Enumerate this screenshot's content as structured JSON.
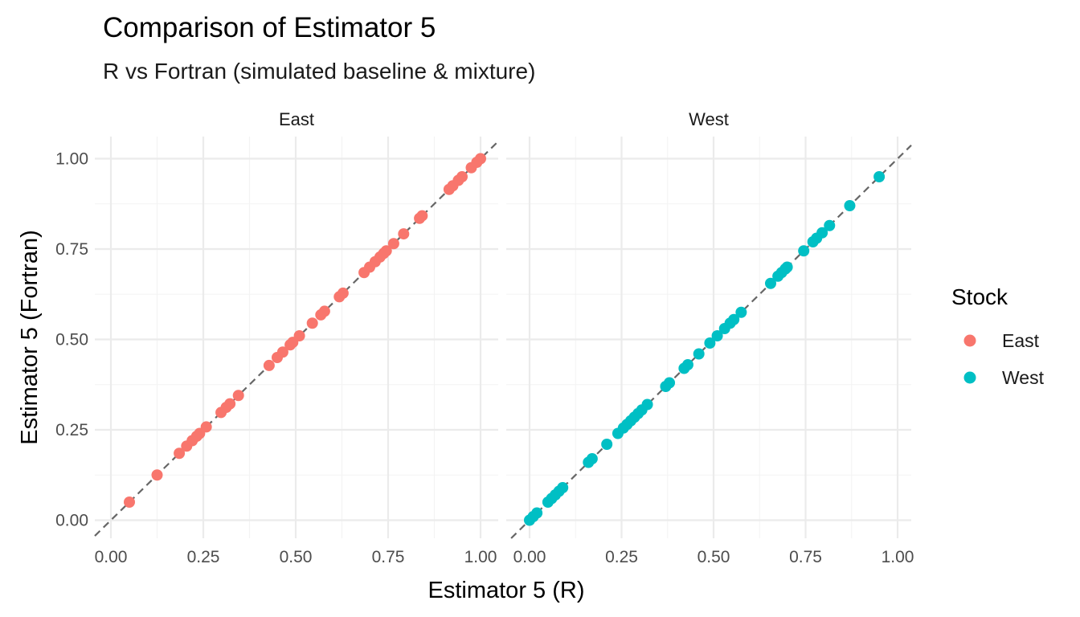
{
  "chart_data": {
    "type": "scatter",
    "title": "Comparison of Estimator 5",
    "subtitle": "R vs Fortran (simulated baseline & mixture)",
    "xlabel": "Estimator 5 (R)",
    "ylabel": "Estimator 5 (Fortran)",
    "xlim": [
      0,
      1
    ],
    "ylim": [
      0,
      1
    ],
    "x_ticks": [
      "0.00",
      "0.25",
      "0.50",
      "0.75",
      "1.00"
    ],
    "y_ticks": [
      "0.00",
      "0.25",
      "0.50",
      "0.75",
      "1.00"
    ],
    "reference_line": "y = x (dashed)",
    "grid": true,
    "legend": {
      "title": "Stock",
      "position": "right"
    },
    "facets": [
      {
        "label": "East",
        "color": "#F8766D",
        "points": [
          0.05,
          0.125,
          0.185,
          0.205,
          0.22,
          0.232,
          0.24,
          0.258,
          0.298,
          0.312,
          0.322,
          0.345,
          0.428,
          0.45,
          0.465,
          0.485,
          0.492,
          0.51,
          0.545,
          0.568,
          0.578,
          0.618,
          0.628,
          0.685,
          0.7,
          0.715,
          0.728,
          0.738,
          0.745,
          0.765,
          0.792,
          0.835,
          0.842,
          0.915,
          0.925,
          0.94,
          0.95,
          0.975,
          0.99,
          1.0
        ]
      },
      {
        "label": "West",
        "color": "#00BFC4",
        "points": [
          0.0,
          0.01,
          0.02,
          0.05,
          0.06,
          0.07,
          0.08,
          0.09,
          0.16,
          0.17,
          0.21,
          0.24,
          0.255,
          0.265,
          0.275,
          0.285,
          0.295,
          0.305,
          0.32,
          0.37,
          0.38,
          0.42,
          0.43,
          0.46,
          0.49,
          0.51,
          0.53,
          0.545,
          0.555,
          0.575,
          0.655,
          0.675,
          0.685,
          0.695,
          0.7,
          0.745,
          0.77,
          0.78,
          0.795,
          0.815,
          0.87,
          0.95
        ]
      }
    ]
  }
}
